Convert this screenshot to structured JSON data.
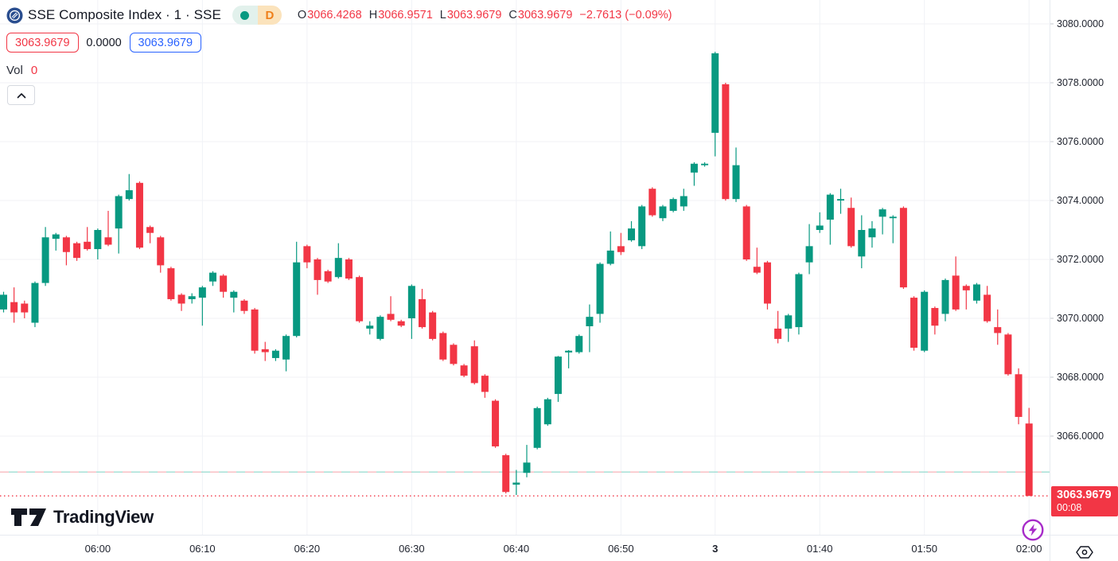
{
  "header": {
    "symbol_title": "SSE Composite Index · 1 · SSE",
    "interval_badge": "D",
    "ohlc": {
      "o_label": "O",
      "o": "3066.4268",
      "h_label": "H",
      "h": "3066.9571",
      "l_label": "L",
      "l": "3063.9679",
      "c_label": "C",
      "c": "3063.9679",
      "change": "−2.7613 (−0.09%)"
    },
    "sell_price": "3063.9679",
    "spread": "0.0000",
    "buy_price": "3063.9679",
    "volume_label": "Vol",
    "volume_value": "0"
  },
  "price_label": {
    "price": "3063.9679",
    "countdown": "00:08"
  },
  "footer": {
    "brand": "TradingView"
  },
  "colors": {
    "up": "#089981",
    "down": "#F23645",
    "accent_blue": "#2962FF",
    "text": "#131722",
    "grid": "#F0F2F6",
    "axis_border": "#E7EAF0",
    "purple": "#A72BC9",
    "orange": "#EF7F1A",
    "navy": "#2A4E8F",
    "prev_close_pink": "#F8B9BF",
    "prev_close_teal": "#9EDCD2"
  },
  "chart_data": {
    "type": "candlestick",
    "title": "SSE Composite Index · 1 · SSE",
    "y_axis": {
      "ticks": [
        {
          "price": 3080,
          "label": "3080.0000"
        },
        {
          "price": 3078,
          "label": "3078.0000"
        },
        {
          "price": 3076,
          "label": "3076.0000"
        },
        {
          "price": 3074,
          "label": "3074.0000"
        },
        {
          "price": 3072,
          "label": "3072.0000"
        },
        {
          "price": 3070,
          "label": "3070.0000"
        },
        {
          "price": 3068,
          "label": "3068.0000"
        },
        {
          "price": 3066,
          "label": "3066.0000"
        }
      ],
      "ylim": [
        3063.2,
        3080.8
      ]
    },
    "x_axis": {
      "labels": [
        {
          "index": 9,
          "label": "06:00",
          "bold": false
        },
        {
          "index": 19,
          "label": "06:10",
          "bold": false
        },
        {
          "index": 29,
          "label": "06:20",
          "bold": false
        },
        {
          "index": 39,
          "label": "06:30",
          "bold": false
        },
        {
          "index": 49,
          "label": "06:40",
          "bold": false
        },
        {
          "index": 59,
          "label": "06:50",
          "bold": false
        },
        {
          "index": 68,
          "label": "3",
          "bold": true
        },
        {
          "index": 78,
          "label": "01:40",
          "bold": false
        },
        {
          "index": 88,
          "label": "01:50",
          "bold": false
        },
        {
          "index": 98,
          "label": "02:00",
          "bold": false
        }
      ]
    },
    "prev_close_line": 3064.78,
    "last_price_line": 3063.9679,
    "candles": [
      [
        "05:51",
        3070.3,
        3070.9,
        3070.2,
        3070.8
      ],
      [
        "05:52",
        3070.55,
        3071.05,
        3069.85,
        3070.2
      ],
      [
        "05:53",
        3070.5,
        3070.6,
        3070.0,
        3070.2
      ],
      [
        "05:54",
        3069.85,
        3071.25,
        3069.7,
        3071.2
      ],
      [
        "05:55",
        3071.2,
        3073.1,
        3071.1,
        3072.75
      ],
      [
        "05:56",
        3072.7,
        3072.9,
        3072.3,
        3072.85
      ],
      [
        "05:57",
        3072.75,
        3072.8,
        3071.8,
        3072.25
      ],
      [
        "05:58",
        3072.55,
        3072.6,
        3071.95,
        3072.05
      ],
      [
        "05:59",
        3072.6,
        3073.1,
        3072.3,
        3072.35
      ],
      [
        "06:00",
        3072.35,
        3073.05,
        3072.0,
        3073.0
      ],
      [
        "06:01",
        3072.75,
        3073.65,
        3072.45,
        3072.5
      ],
      [
        "06:02",
        3073.05,
        3074.2,
        3072.2,
        3074.15
      ],
      [
        "06:03",
        3074.05,
        3074.9,
        3074.0,
        3074.35
      ],
      [
        "06:04",
        3074.6,
        3074.65,
        3072.35,
        3072.4
      ],
      [
        "06:05",
        3073.1,
        3073.15,
        3072.55,
        3072.9
      ],
      [
        "06:06",
        3072.75,
        3072.8,
        3071.55,
        3071.8
      ],
      [
        "06:07",
        3071.7,
        3071.75,
        3070.6,
        3070.65
      ],
      [
        "06:08",
        3070.8,
        3070.85,
        3070.25,
        3070.5
      ],
      [
        "06:09",
        3070.65,
        3070.85,
        3070.5,
        3070.75
      ],
      [
        "06:10",
        3070.7,
        3071.1,
        3069.75,
        3071.05
      ],
      [
        "06:11",
        3071.25,
        3071.6,
        3071.1,
        3071.55
      ],
      [
        "06:12",
        3071.45,
        3071.5,
        3070.7,
        3070.9
      ],
      [
        "06:13",
        3070.7,
        3070.95,
        3070.2,
        3070.9
      ],
      [
        "06:14",
        3070.6,
        3070.65,
        3070.15,
        3070.25
      ],
      [
        "06:15",
        3070.3,
        3070.35,
        3068.8,
        3068.9
      ],
      [
        "06:16",
        3068.95,
        3069.2,
        3068.55,
        3068.85
      ],
      [
        "06:17",
        3068.65,
        3068.95,
        3068.55,
        3068.9
      ],
      [
        "06:18",
        3068.6,
        3069.45,
        3068.2,
        3069.4
      ],
      [
        "06:19",
        3069.4,
        3072.6,
        3069.35,
        3071.9
      ],
      [
        "06:20",
        3072.45,
        3072.5,
        3071.7,
        3071.9
      ],
      [
        "06:21",
        3072.0,
        3072.05,
        3070.8,
        3071.3
      ],
      [
        "06:22",
        3071.6,
        3071.65,
        3071.2,
        3071.25
      ],
      [
        "06:23",
        3071.4,
        3072.55,
        3071.35,
        3072.05
      ],
      [
        "06:24",
        3072.0,
        3072.05,
        3071.3,
        3071.35
      ],
      [
        "06:25",
        3071.4,
        3071.45,
        3069.85,
        3069.9
      ],
      [
        "06:26",
        3069.65,
        3069.9,
        3069.45,
        3069.75
      ],
      [
        "06:27",
        3069.3,
        3070.1,
        3069.25,
        3070.05
      ],
      [
        "06:28",
        3070.15,
        3070.75,
        3069.9,
        3069.95
      ],
      [
        "06:29",
        3069.9,
        3069.95,
        3069.7,
        3069.75
      ],
      [
        "06:30",
        3070.0,
        3071.15,
        3069.3,
        3071.1
      ],
      [
        "06:31",
        3070.65,
        3071.0,
        3069.65,
        3069.7
      ],
      [
        "06:32",
        3070.2,
        3070.25,
        3069.25,
        3069.3
      ],
      [
        "06:33",
        3069.5,
        3069.55,
        3068.55,
        3068.6
      ],
      [
        "06:34",
        3069.1,
        3069.15,
        3068.4,
        3068.45
      ],
      [
        "06:35",
        3068.4,
        3068.45,
        3068.0,
        3068.05
      ],
      [
        "06:36",
        3069.05,
        3069.25,
        3067.75,
        3067.8
      ],
      [
        "06:37",
        3068.05,
        3068.1,
        3067.3,
        3067.5
      ],
      [
        "06:38",
        3067.2,
        3067.25,
        3065.6,
        3065.65
      ],
      [
        "06:39",
        3065.35,
        3065.4,
        3064.05,
        3064.1
      ],
      [
        "06:40",
        3064.35,
        3064.85,
        3064.0,
        3064.42
      ],
      [
        "06:41",
        3064.75,
        3065.7,
        3064.6,
        3065.1
      ],
      [
        "06:42",
        3065.6,
        3067.0,
        3065.55,
        3066.95
      ],
      [
        "06:43",
        3066.4,
        3067.3,
        3066.35,
        3067.25
      ],
      [
        "06:44",
        3067.43,
        3068.72,
        3067.16,
        3068.7
      ],
      [
        "06:45",
        3068.84,
        3068.92,
        3068.3,
        3068.9
      ],
      [
        "06:46",
        3068.85,
        3069.45,
        3068.8,
        3069.4
      ],
      [
        "06:47",
        3069.73,
        3070.47,
        3068.85,
        3070.05
      ],
      [
        "06:48",
        3070.15,
        3071.9,
        3069.85,
        3071.85
      ],
      [
        "06:49",
        3071.85,
        3072.95,
        3071.8,
        3072.3
      ],
      [
        "06:50",
        3072.45,
        3072.9,
        3072.15,
        3072.25
      ],
      [
        "06:51",
        3072.65,
        3073.3,
        3072.6,
        3073.05
      ],
      [
        "06:52",
        3072.45,
        3073.85,
        3072.35,
        3073.8
      ],
      [
        "06:53",
        3074.4,
        3074.45,
        3073.45,
        3073.5
      ],
      [
        "06:54",
        3073.4,
        3073.85,
        3073.3,
        3073.8
      ],
      [
        "06:55",
        3073.65,
        3074.1,
        3073.6,
        3074.05
      ],
      [
        "06:56",
        3073.8,
        3074.4,
        3073.65,
        3074.15
      ],
      [
        "06:57",
        3074.95,
        3075.3,
        3074.5,
        3075.25
      ],
      [
        "06:58",
        3075.2,
        3075.3,
        3075.15,
        3075.25
      ],
      [
        "01:30",
        3076.3,
        3079.05,
        3075.5,
        3079.0
      ],
      [
        "01:31",
        3077.95,
        3078.0,
        3074.0,
        3074.05
      ],
      [
        "01:32",
        3074.05,
        3075.8,
        3073.95,
        3075.2
      ],
      [
        "01:33",
        3073.8,
        3073.85,
        3071.95,
        3072.0
      ],
      [
        "01:34",
        3071.75,
        3072.4,
        3071.5,
        3071.55
      ],
      [
        "01:35",
        3071.9,
        3071.95,
        3070.3,
        3070.5
      ],
      [
        "01:36",
        3069.65,
        3070.25,
        3069.15,
        3069.3
      ],
      [
        "01:37",
        3069.65,
        3070.15,
        3069.2,
        3070.1
      ],
      [
        "01:38",
        3069.7,
        3071.55,
        3069.45,
        3071.5
      ],
      [
        "01:39",
        3071.9,
        3073.2,
        3071.5,
        3072.45
      ],
      [
        "01:40",
        3073.0,
        3073.6,
        3072.9,
        3073.15
      ],
      [
        "01:41",
        3073.35,
        3074.25,
        3072.5,
        3074.2
      ],
      [
        "01:42",
        3074.0,
        3074.4,
        3073.55,
        3074.05
      ],
      [
        "01:43",
        3073.75,
        3074.1,
        3072.4,
        3072.45
      ],
      [
        "01:44",
        3072.1,
        3073.5,
        3071.7,
        3073.0
      ],
      [
        "01:45",
        3072.75,
        3073.3,
        3072.4,
        3073.05
      ],
      [
        "01:46",
        3073.45,
        3073.75,
        3072.85,
        3073.7
      ],
      [
        "01:47",
        3073.4,
        3073.5,
        3072.55,
        3073.45
      ],
      [
        "01:48",
        3073.75,
        3073.8,
        3071.0,
        3071.05
      ],
      [
        "01:49",
        3070.7,
        3070.75,
        3068.9,
        3069.0
      ],
      [
        "01:50",
        3068.9,
        3070.95,
        3068.85,
        3070.9
      ],
      [
        "01:51",
        3070.35,
        3070.4,
        3069.45,
        3069.75
      ],
      [
        "01:52",
        3070.15,
        3071.35,
        3069.9,
        3071.3
      ],
      [
        "01:53",
        3071.45,
        3072.1,
        3070.25,
        3070.3
      ],
      [
        "01:54",
        3071.1,
        3071.15,
        3070.3,
        3070.95
      ],
      [
        "01:55",
        3070.6,
        3071.2,
        3070.5,
        3071.15
      ],
      [
        "01:56",
        3070.8,
        3071.1,
        3069.85,
        3069.9
      ],
      [
        "01:57",
        3069.7,
        3070.3,
        3069.1,
        3069.5
      ],
      [
        "01:58",
        3069.45,
        3069.5,
        3068.05,
        3068.1
      ],
      [
        "01:59",
        3068.1,
        3068.3,
        3066.4,
        3066.65
      ],
      [
        "02:00",
        3066.4268,
        3066.9571,
        3063.9679,
        3063.9679
      ]
    ]
  }
}
